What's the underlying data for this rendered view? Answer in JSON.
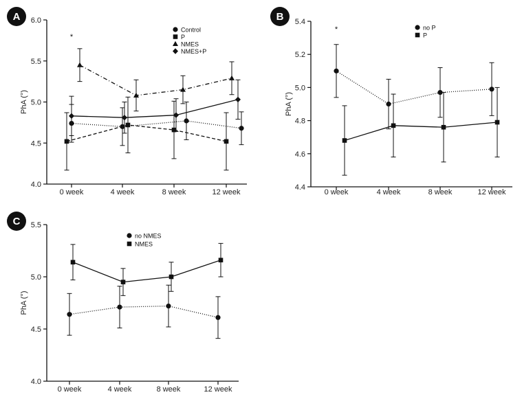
{
  "chart_data": [
    {
      "panel": "A",
      "type": "line",
      "ylabel": "PhA (°)",
      "ylim": [
        4.0,
        6.0
      ],
      "yticks": [
        "4.0",
        "4.5",
        "5.0",
        "5.5",
        "6.0"
      ],
      "categories": [
        "0 week",
        "4 week",
        "8 week",
        "12 week"
      ],
      "annotations": [
        {
          "text": "*",
          "category": "0 week"
        }
      ],
      "series": [
        {
          "name": "Control",
          "marker": "circle",
          "dash": "1,2",
          "values": [
            4.74,
            4.7,
            4.77,
            4.68
          ],
          "err": [
            0.23,
            0.23,
            0.23,
            0.2
          ]
        },
        {
          "name": "P",
          "marker": "square",
          "dash": "5,3",
          "values": [
            4.52,
            4.72,
            4.66,
            4.52
          ],
          "err": [
            0.35,
            0.34,
            0.35,
            0.35
          ]
        },
        {
          "name": "NMES",
          "marker": "triangle",
          "dash": "6,3,1,3",
          "values": [
            5.45,
            5.08,
            5.15,
            5.29
          ],
          "err": [
            0.2,
            0.19,
            0.17,
            0.2
          ]
        },
        {
          "name": "NMES+P",
          "marker": "diamond",
          "dash": "",
          "values": [
            4.83,
            4.81,
            4.84,
            5.03
          ],
          "err": [
            0.24,
            0.19,
            0.2,
            0.24
          ]
        }
      ]
    },
    {
      "panel": "B",
      "type": "line",
      "ylabel": "PhA (°)",
      "ylim": [
        4.4,
        5.4
      ],
      "yticks": [
        "4.4",
        "4.6",
        "4.8",
        "5.0",
        "5.2",
        "5.4"
      ],
      "categories": [
        "0 week",
        "4 week",
        "8 week",
        "12 week"
      ],
      "annotations": [
        {
          "text": "*",
          "category": "0 week"
        }
      ],
      "series": [
        {
          "name": "no P",
          "marker": "circle",
          "dash": "1,2",
          "values": [
            5.1,
            4.9,
            4.97,
            4.99
          ],
          "err": [
            0.16,
            0.15,
            0.15,
            0.16
          ]
        },
        {
          "name": "P",
          "marker": "square",
          "dash": "",
          "values": [
            4.68,
            4.77,
            4.76,
            4.79
          ],
          "err": [
            0.21,
            0.19,
            0.21,
            0.21
          ]
        }
      ]
    },
    {
      "panel": "C",
      "type": "line",
      "ylabel": "PhA (°)",
      "ylim": [
        4.0,
        5.5
      ],
      "yticks": [
        "4.0",
        "4.5",
        "5.0",
        "5.5"
      ],
      "categories": [
        "0 week",
        "4 week",
        "8 week",
        "12 week"
      ],
      "annotations": [],
      "series": [
        {
          "name": "no NMES",
          "marker": "circle",
          "dash": "1,2",
          "values": [
            4.64,
            4.71,
            4.72,
            4.61
          ],
          "err": [
            0.2,
            0.2,
            0.2,
            0.2
          ]
        },
        {
          "name": "NMES",
          "marker": "square",
          "dash": "",
          "values": [
            5.14,
            4.95,
            5.0,
            5.16
          ],
          "err": [
            0.17,
            0.13,
            0.14,
            0.16
          ]
        }
      ]
    }
  ]
}
